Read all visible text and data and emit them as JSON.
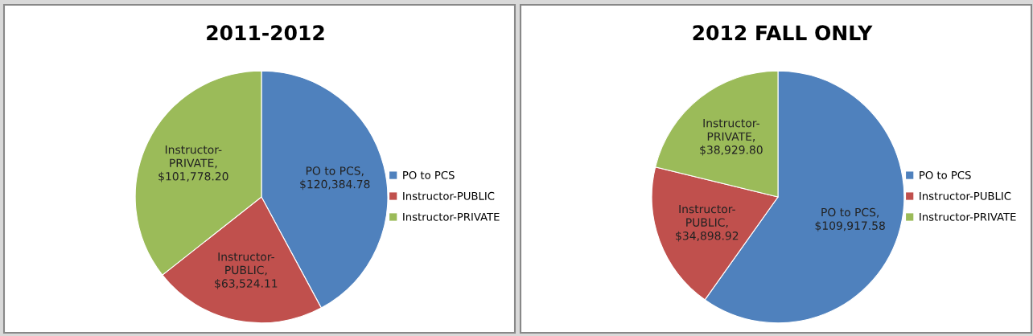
{
  "chart_data": [
    {
      "type": "pie",
      "title": "2011-2012",
      "categories": [
        "PO to PCS",
        "Instructor-PUBLIC",
        "Instructor-PRIVATE"
      ],
      "values": [
        120384.78,
        63524.11,
        101778.2
      ],
      "colors": [
        "#4f81bd",
        "#c0504d",
        "#9bbb59"
      ],
      "value_labels": [
        "PO to PCS,\n$120,384.78",
        "Instructor-\nPUBLIC,\n$63,524.11",
        "Instructor-\nPRIVATE,\n$101,778.20"
      ],
      "legend": "right"
    },
    {
      "type": "pie",
      "title": "2012 FALL ONLY",
      "categories": [
        "PO to PCS",
        "Instructor-PUBLIC",
        "Instructor-PRIVATE"
      ],
      "values": [
        109917.58,
        34898.92,
        38929.8
      ],
      "colors": [
        "#4f81bd",
        "#c0504d",
        "#9bbb59"
      ],
      "value_labels": [
        "PO to PCS,\n$109,917.58",
        "Instructor-\nPUBLIC,\n$34,898.92",
        "Instructor-\nPRIVATE,\n$38,929.80"
      ],
      "legend": "right"
    }
  ]
}
